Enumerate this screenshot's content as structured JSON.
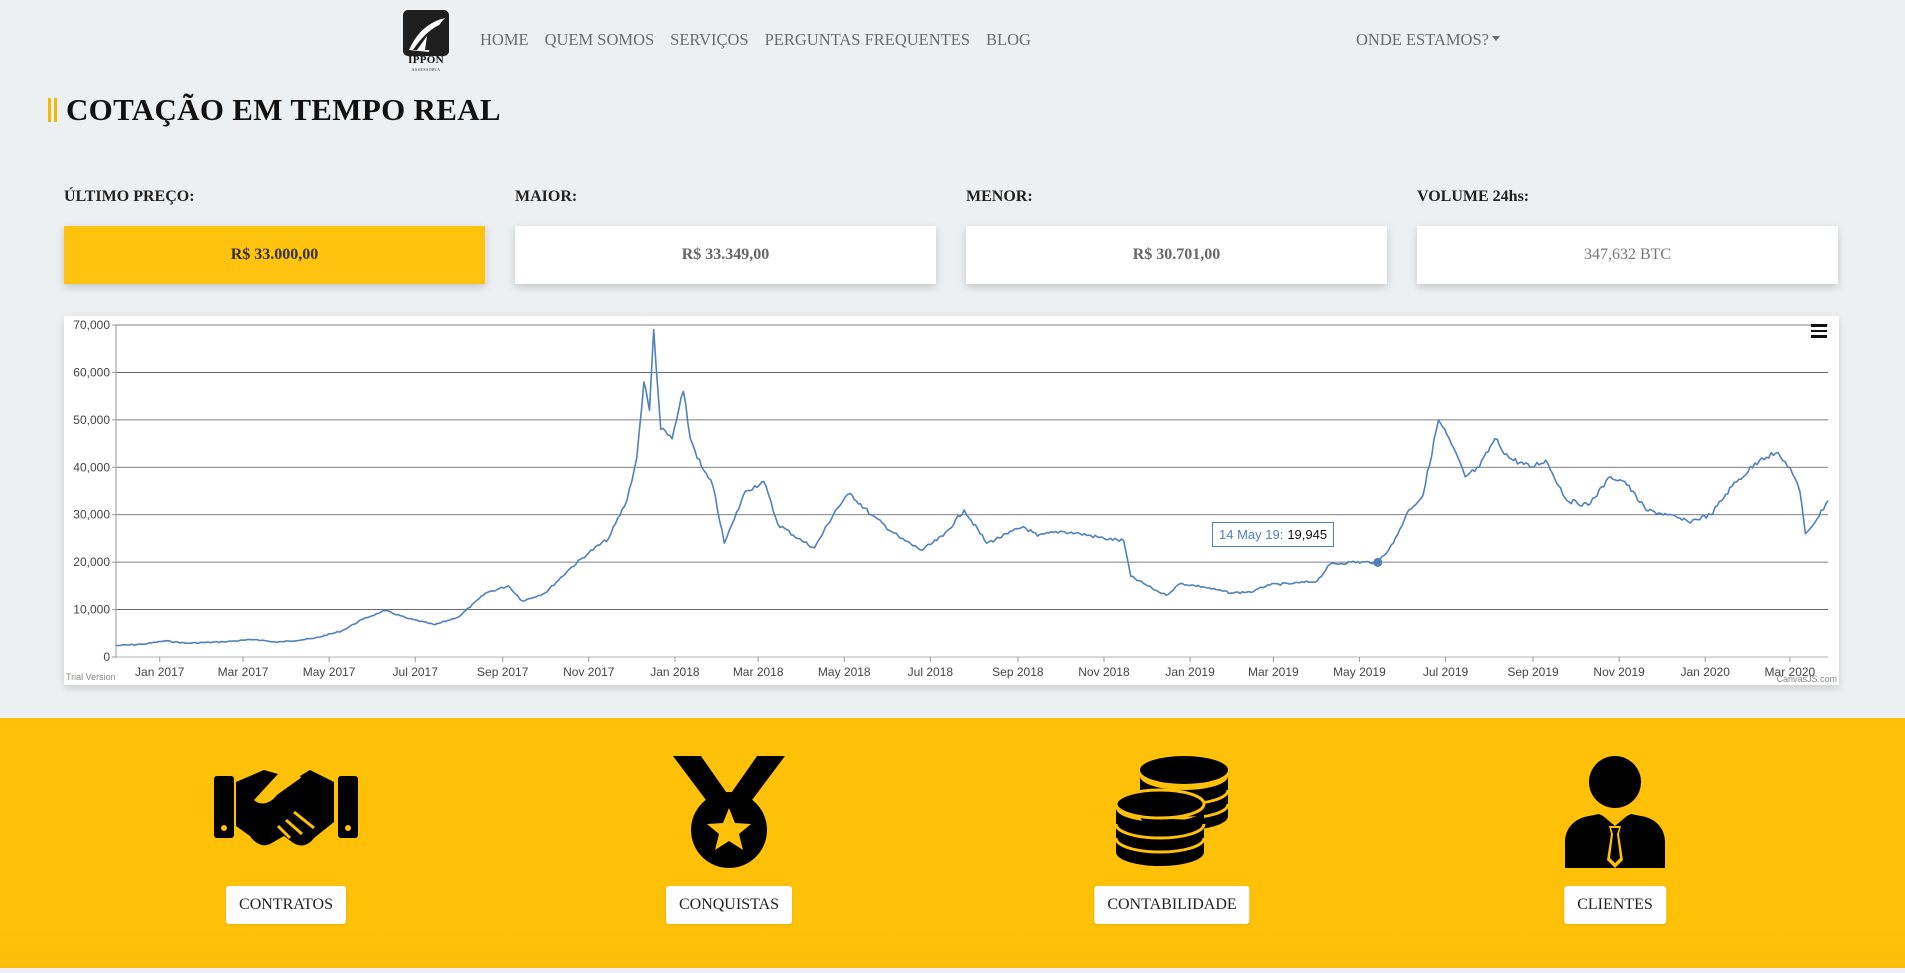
{
  "nav": {
    "logo_text": "IPPON",
    "logo_sub": "ASSESSORIA",
    "links": [
      "HOME",
      "QUEM SOMOS",
      "SERVIÇOS",
      "PERGUNTAS FREQUENTES",
      "BLOG"
    ],
    "dropdown": "ONDE ESTAMOS?"
  },
  "page": {
    "title": "COTAÇÃO EM TEMPO REAL"
  },
  "stats": [
    {
      "label": "ÚLTIMO PREÇO:",
      "value": "R$ 33.000,00"
    },
    {
      "label": "MAIOR:",
      "value": "R$ 33.349,00"
    },
    {
      "label": "MENOR:",
      "value": "R$ 30.701,00"
    },
    {
      "label": "VOLUME 24hs:",
      "value": "347,632 BTC"
    }
  ],
  "chart_data": {
    "type": "line",
    "ylim": [
      0,
      70000
    ],
    "y_ticks": [
      "0",
      "10,000",
      "20,000",
      "30,000",
      "40,000",
      "50,000",
      "60,000",
      "70,000"
    ],
    "x_ticks": [
      "Jan 2017",
      "Mar 2017",
      "May 2017",
      "Jul 2017",
      "Sep 2017",
      "Nov 2017",
      "Jan 2018",
      "Mar 2018",
      "May 2018",
      "Jul 2018",
      "Sep 2018",
      "Nov 2018",
      "Jan 2019",
      "Mar 2019",
      "May 2019",
      "Jul 2019",
      "Sep 2019",
      "Nov 2019",
      "Jan 2020",
      "Mar 2020"
    ],
    "grid": true,
    "line_color": "#4f81bc",
    "points": [
      [
        "2016-12-01",
        2400
      ],
      [
        "2016-12-20",
        2700
      ],
      [
        "2017-01-05",
        3400
      ],
      [
        "2017-01-20",
        2900
      ],
      [
        "2017-02-15",
        3200
      ],
      [
        "2017-03-10",
        3700
      ],
      [
        "2017-03-25",
        3100
      ],
      [
        "2017-04-20",
        3900
      ],
      [
        "2017-05-10",
        5500
      ],
      [
        "2017-05-25",
        8000
      ],
      [
        "2017-06-10",
        9800
      ],
      [
        "2017-06-25",
        8200
      ],
      [
        "2017-07-15",
        6800
      ],
      [
        "2017-08-01",
        8500
      ],
      [
        "2017-08-20",
        13500
      ],
      [
        "2017-09-05",
        15000
      ],
      [
        "2017-09-15",
        11800
      ],
      [
        "2017-10-01",
        13500
      ],
      [
        "2017-10-20",
        19000
      ],
      [
        "2017-11-01",
        22000
      ],
      [
        "2017-11-15",
        25000
      ],
      [
        "2017-11-28",
        33000
      ],
      [
        "2017-12-05",
        42000
      ],
      [
        "2017-12-10",
        58000
      ],
      [
        "2017-12-14",
        52000
      ],
      [
        "2017-12-17",
        69000
      ],
      [
        "2017-12-22",
        48000
      ],
      [
        "2017-12-30",
        46000
      ],
      [
        "2018-01-07",
        56000
      ],
      [
        "2018-01-12",
        46000
      ],
      [
        "2018-01-20",
        40000
      ],
      [
        "2018-01-28",
        36000
      ],
      [
        "2018-02-05",
        24000
      ],
      [
        "2018-02-12",
        29000
      ],
      [
        "2018-02-20",
        35000
      ],
      [
        "2018-03-05",
        37000
      ],
      [
        "2018-03-15",
        28000
      ],
      [
        "2018-04-01",
        24500
      ],
      [
        "2018-04-10",
        23000
      ],
      [
        "2018-04-25",
        31000
      ],
      [
        "2018-05-05",
        34500
      ],
      [
        "2018-05-20",
        30000
      ],
      [
        "2018-06-10",
        25000
      ],
      [
        "2018-06-25",
        22500
      ],
      [
        "2018-07-10",
        25500
      ],
      [
        "2018-07-25",
        31000
      ],
      [
        "2018-08-10",
        24000
      ],
      [
        "2018-08-25",
        26000
      ],
      [
        "2018-09-05",
        27500
      ],
      [
        "2018-09-15",
        25500
      ],
      [
        "2018-10-01",
        26500
      ],
      [
        "2018-10-15",
        26000
      ],
      [
        "2018-11-01",
        25000
      ],
      [
        "2018-11-15",
        24500
      ],
      [
        "2018-11-20",
        17000
      ],
      [
        "2018-12-05",
        14500
      ],
      [
        "2018-12-15",
        13000
      ],
      [
        "2018-12-25",
        15500
      ],
      [
        "2019-01-10",
        14800
      ],
      [
        "2019-01-30",
        13500
      ],
      [
        "2019-02-15",
        13800
      ],
      [
        "2019-02-25",
        15200
      ],
      [
        "2019-03-15",
        15500
      ],
      [
        "2019-04-01",
        16000
      ],
      [
        "2019-04-10",
        19500
      ],
      [
        "2019-04-25",
        20000
      ],
      [
        "2019-05-14",
        19945
      ],
      [
        "2019-05-25",
        24000
      ],
      [
        "2019-06-05",
        31000
      ],
      [
        "2019-06-15",
        34000
      ],
      [
        "2019-06-26",
        50000
      ],
      [
        "2019-07-05",
        45000
      ],
      [
        "2019-07-15",
        38000
      ],
      [
        "2019-07-25",
        40000
      ],
      [
        "2019-08-05",
        46000
      ],
      [
        "2019-08-15",
        42000
      ],
      [
        "2019-08-30",
        40000
      ],
      [
        "2019-09-10",
        41500
      ],
      [
        "2019-09-25",
        33000
      ],
      [
        "2019-10-10",
        32000
      ],
      [
        "2019-10-26",
        38000
      ],
      [
        "2019-11-05",
        37000
      ],
      [
        "2019-11-20",
        31000
      ],
      [
        "2019-12-05",
        30000
      ],
      [
        "2019-12-20",
        28500
      ],
      [
        "2020-01-05",
        30000
      ],
      [
        "2020-01-20",
        36000
      ],
      [
        "2020-02-10",
        42000
      ],
      [
        "2020-02-20",
        43000
      ],
      [
        "2020-03-01",
        40000
      ],
      [
        "2020-03-08",
        35000
      ],
      [
        "2020-03-12",
        26000
      ],
      [
        "2020-03-20",
        29000
      ],
      [
        "2020-03-28",
        33000
      ]
    ],
    "tooltip": {
      "label": "14 May 19:",
      "value": "19,945"
    },
    "trial_text": "Trial Version",
    "credit_text": "CanvasJS.com"
  },
  "features": [
    {
      "label": "CONTRATOS",
      "icon": "handshake-icon"
    },
    {
      "label": "CONQUISTAS",
      "icon": "medal-icon"
    },
    {
      "label": "CONTABILIDADE",
      "icon": "coins-icon"
    },
    {
      "label": "CLIENTES",
      "icon": "client-icon"
    }
  ]
}
